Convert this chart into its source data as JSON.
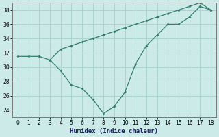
{
  "xlabel": "Humidex (Indice chaleur)",
  "line1_x": [
    0,
    1,
    2,
    3,
    4,
    5,
    6,
    7,
    8,
    9,
    10,
    11,
    12,
    13,
    14,
    15,
    16,
    17,
    18
  ],
  "line1_y": [
    31.5,
    31.5,
    31.5,
    31.0,
    29.5,
    27.5,
    27.0,
    25.5,
    23.5,
    24.5,
    26.5,
    30.5,
    33.0,
    34.5,
    36.0,
    36.0,
    37.0,
    38.5,
    38.0
  ],
  "line2_x": [
    3,
    4,
    5,
    6,
    7,
    8,
    9,
    10,
    11,
    12,
    13,
    14,
    15,
    16,
    17,
    18
  ],
  "line2_y": [
    31.0,
    32.5,
    33.0,
    33.5,
    34.0,
    34.5,
    35.0,
    35.5,
    36.0,
    36.5,
    37.0,
    37.5,
    38.0,
    38.5,
    39.0,
    38.0
  ],
  "line_color": "#2e7d6e",
  "bg_color": "#cceae7",
  "grid_color": "#aad4d0",
  "ylim": [
    23,
    39
  ],
  "xlim": [
    -0.5,
    18.5
  ],
  "yticks": [
    24,
    26,
    28,
    30,
    32,
    34,
    36,
    38
  ],
  "xticks": [
    0,
    1,
    2,
    3,
    4,
    5,
    6,
    7,
    8,
    9,
    10,
    11,
    12,
    13,
    14,
    15,
    16,
    17,
    18
  ]
}
